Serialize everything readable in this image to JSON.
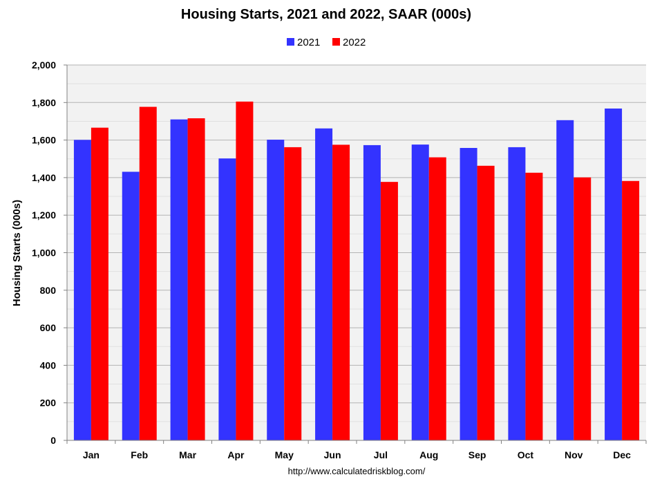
{
  "chart_data": {
    "type": "bar",
    "title": "Housing Starts,  2021 and 2022, SAAR (000s)",
    "xlabel": "",
    "ylabel": "Housing Starts (000s)",
    "categories": [
      "Jan",
      "Feb",
      "Mar",
      "Apr",
      "May",
      "Jun",
      "Jul",
      "Aug",
      "Sep",
      "Oct",
      "Nov",
      "Dec"
    ],
    "series": [
      {
        "name": "2021",
        "color": "#3333ff",
        "values": [
          1601,
          1431,
          1710,
          1502,
          1602,
          1662,
          1573,
          1576,
          1558,
          1562,
          1706,
          1768
        ]
      },
      {
        "name": "2022",
        "color": "#ff0000",
        "values": [
          1666,
          1777,
          1716,
          1805,
          1562,
          1575,
          1377,
          1508,
          1463,
          1426,
          1401,
          1382
        ]
      }
    ],
    "ylim": [
      0,
      2000
    ],
    "yticks": [
      0,
      200,
      400,
      600,
      800,
      1000,
      1200,
      1400,
      1600,
      1800,
      2000
    ],
    "ytick_labels": [
      "0",
      "200",
      "400",
      "600",
      "800",
      "1,000",
      "1,200",
      "1,400",
      "1,600",
      "1,800",
      "2,000"
    ],
    "grid": true,
    "legend_position": "top-center",
    "plot_background": "#f2f2f2",
    "annotation": "http://www.calculatedriskblog.com/"
  }
}
